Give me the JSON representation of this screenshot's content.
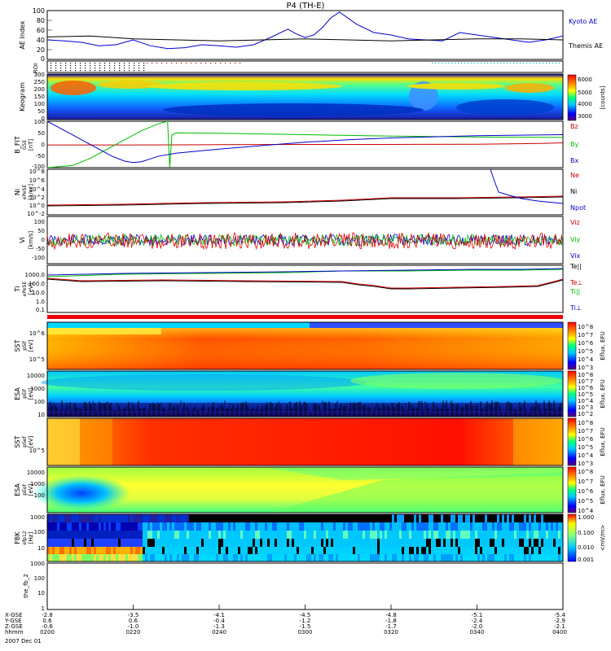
{
  "title": "P4 (TH-E)",
  "date": "2007 Dec 01",
  "chart_data": {
    "type": "multi-panel",
    "title": "P4 (TH-E)",
    "x_ticks": [
      "0200",
      "0220",
      "0240",
      "0300",
      "0320",
      "0340",
      "0400"
    ],
    "x_rows": [
      {
        "label": "X-GSE",
        "values": [
          "-2.8",
          "-3.5",
          "-4.1",
          "-4.5",
          "-4.8",
          "-5.1",
          "-5.4"
        ]
      },
      {
        "label": "Y-GSE",
        "values": [
          "0.6",
          "0.6",
          "-0.4",
          "-1.2",
          "-1.8",
          "-2.4",
          "-2.9"
        ]
      },
      {
        "label": "Z-GSE",
        "values": [
          "-0.6",
          "-1.0",
          "-1.3",
          "-1.5",
          "-1.7",
          "-2.0",
          "-2.1"
        ]
      },
      {
        "label": "hhmm",
        "values": [
          "0200",
          "0220",
          "0240",
          "0300",
          "0320",
          "0340",
          "0400"
        ]
      }
    ],
    "panels": [
      {
        "id": "ae",
        "ylabel": "AE Index",
        "ylim": [
          0,
          100
        ],
        "yticks": [
          "100",
          "80",
          "60",
          "40",
          "20",
          "0"
        ],
        "legend": [
          {
            "name": "Kyoto AE",
            "color": "#0000cc"
          },
          {
            "name": "Themis AE",
            "color": "#000000"
          }
        ],
        "series": [
          {
            "name": "Kyoto AE",
            "color": "#0000cc",
            "x": [
              0,
              4,
              8,
              12,
              16,
              20,
              24,
              28,
              32,
              36,
              40,
              44,
              48,
              52,
              56,
              58,
              60,
              62,
              64,
              66,
              68,
              72,
              76,
              80,
              84,
              88,
              92,
              96,
              100,
              104,
              108,
              112,
              116,
              120
            ],
            "y": [
              40,
              38,
              35,
              28,
              30,
              40,
              28,
              22,
              24,
              30,
              28,
              25,
              30,
              45,
              62,
              52,
              45,
              50,
              65,
              85,
              97,
              72,
              55,
              50,
              42,
              40,
              38,
              55,
              50,
              45,
              40,
              35,
              40,
              48
            ]
          },
          {
            "name": "Themis AE",
            "color": "#000000",
            "x": [
              0,
              10,
              20,
              30,
              40,
              50,
              60,
              70,
              80,
              90,
              100,
              110,
              120
            ],
            "y": [
              46,
              48,
              42,
              40,
              38,
              40,
              42,
              40,
              38,
              40,
              42,
              42,
              40
            ]
          }
        ]
      },
      {
        "id": "roi",
        "ylabel": "ROI"
      },
      {
        "id": "keogram",
        "ylabel": "Keogram",
        "ylim": [
          0,
          300
        ],
        "yticks": [
          "300",
          "250",
          "200",
          "150",
          "100",
          "50",
          "0"
        ],
        "colorbar": {
          "label": "[counts]",
          "ticks": [
            "6000",
            "5000",
            "4000",
            "3000"
          ]
        }
      },
      {
        "id": "bfit",
        "ylabel": "B_FIT",
        "sublabel": "GSE",
        "units": "[nT]",
        "ylim": [
          -100,
          100
        ],
        "yticks": [
          "100",
          "50",
          "0",
          "-50",
          "-100"
        ],
        "legend": [
          {
            "name": "Bz",
            "color": "#cc0000"
          },
          {
            "name": "By",
            "color": "#00bb00"
          },
          {
            "name": "Bx",
            "color": "#0000cc"
          }
        ],
        "series": [
          {
            "name": "Bx",
            "color": "#0000cc",
            "x": [
              0,
              3,
              6,
              9,
              12,
              15,
              18,
              20,
              22,
              24,
              26,
              30,
              40,
              50,
              60,
              70,
              80,
              90,
              100,
              110,
              120
            ],
            "y": [
              100,
              70,
              40,
              10,
              -20,
              -50,
              -72,
              -78,
              -74,
              -62,
              -50,
              -38,
              -20,
              -5,
              10,
              20,
              28,
              33,
              38,
              40,
              42
            ]
          },
          {
            "name": "By",
            "color": "#00bb00",
            "x": [
              0,
              6,
              10,
              14,
              18,
              22,
              26,
              28,
              28.5,
              29,
              30,
              40,
              60,
              80,
              100,
              120
            ],
            "y": [
              -100,
              -90,
              -60,
              -20,
              20,
              60,
              90,
              100,
              -98,
              40,
              50,
              48,
              42,
              36,
              32,
              30
            ]
          },
          {
            "name": "Bz",
            "color": "#cc0000",
            "x": [
              0,
              20,
              40,
              60,
              80,
              100,
              110,
              116,
              120
            ],
            "y": [
              -2,
              -2,
              -1,
              0,
              0,
              1,
              3,
              5,
              7
            ]
          }
        ]
      },
      {
        "id": "ni",
        "ylabel": "Ni",
        "sublabel": "ePeSE",
        "units": "[1/cc]",
        "ylim": [
          -2,
          9
        ],
        "yticks": [
          "10^8",
          "10^6",
          "10^4",
          "10^2",
          "10^0",
          "10^-2"
        ],
        "legend": [
          {
            "name": "Ne",
            "color": "#cc0000"
          },
          {
            "name": "Ni",
            "color": "#000000"
          },
          {
            "name": "Npot",
            "color": "#0000cc"
          }
        ]
      },
      {
        "id": "vi",
        "ylabel": "Vi",
        "units": "[km/s]",
        "ylim": [
          -150,
          150
        ],
        "yticks": [
          "100",
          "50",
          "0",
          "-50",
          "-100"
        ],
        "legend": [
          {
            "name": "Viz",
            "color": "#cc0000"
          },
          {
            "name": "Viy",
            "color": "#00bb00"
          },
          {
            "name": "Vix",
            "color": "#0000cc"
          }
        ]
      },
      {
        "id": "ti",
        "ylabel": "Ti",
        "sublabel": "ePeSE",
        "units": "[eV]",
        "ylim": [
          -1.5,
          4
        ],
        "yticks": [
          "1000.0",
          "100.0",
          "10.0",
          "1.0",
          "0.1"
        ],
        "legend": [
          {
            "name": "Te||",
            "color": "#000000"
          },
          {
            "name": "Te⊥",
            "color": "#cc0000"
          },
          {
            "name": "Ti||",
            "color": "#00bb00"
          },
          {
            "name": "Ti⊥",
            "color": "#0000cc"
          }
        ]
      },
      {
        "id": "sst_i",
        "ylabel": "SST",
        "sublabel": "pSif",
        "units": "[eV]",
        "yticks": [
          "10^6",
          "10^5"
        ],
        "colorbar": {
          "label": "Eflux, EFU",
          "ticks": [
            "10^8",
            "10^7",
            "10^6",
            "10^5",
            "10^4",
            "10^3"
          ]
        }
      },
      {
        "id": "esa_i",
        "ylabel": "ESA",
        "sublabel": "pEif",
        "units": "[eV]",
        "yticks": [
          "10000",
          "1000",
          "100",
          "10"
        ],
        "colorbar": {
          "label": "Eflux, EFU",
          "ticks": [
            "10^8",
            "10^7",
            "10^6",
            "10^5",
            "10^4",
            "10^3",
            "10^2"
          ]
        }
      },
      {
        "id": "sst_e",
        "ylabel": "SST",
        "sublabel": "pSef",
        "units": "[eV]",
        "yticks": [
          "10^5"
        ],
        "colorbar": {
          "label": "Eflux, EFU",
          "ticks": [
            "10^8",
            "10^7",
            "10^6",
            "10^5",
            "10^4",
            "10^3"
          ]
        }
      },
      {
        "id": "esa_e",
        "ylabel": "ESA",
        "sublabel": "pEef",
        "units": "[eV]",
        "yticks": [
          "10000",
          "1000",
          "100"
        ],
        "colorbar": {
          "label": "Eflux, EFU",
          "ticks": [
            "10^8",
            "10^7",
            "10^6",
            "10^5",
            "10^4"
          ]
        }
      },
      {
        "id": "fbk",
        "ylabel": "FBK",
        "sublabel": "efp12",
        "units": "[Hz]",
        "yticks": [
          "1000",
          "100",
          "10"
        ],
        "colorbar": {
          "label": "<mV/m>",
          "ticks": [
            "1.000",
            "0.100",
            "0.010",
            "0.001"
          ]
        }
      },
      {
        "id": "fbk2",
        "ylabel": "the_fb_2",
        "yticks": [
          "1000",
          "100",
          "10",
          "1"
        ]
      }
    ]
  }
}
